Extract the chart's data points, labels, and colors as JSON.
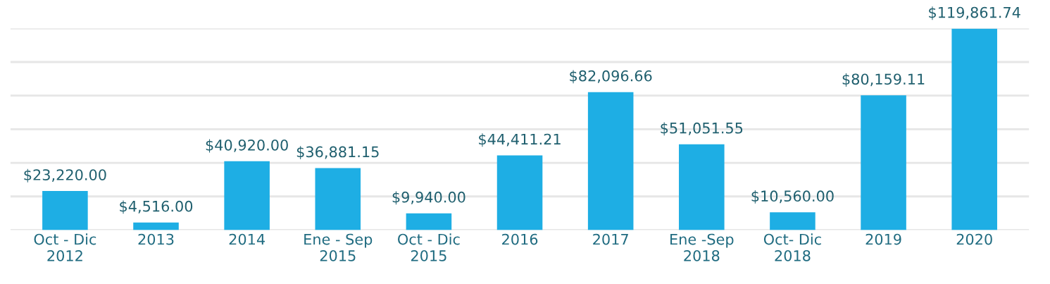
{
  "chart_data": {
    "type": "bar",
    "categories": [
      "Oct - Dic\n2012",
      "2013",
      "2014",
      "Ene - Sep\n2015",
      "Oct - Dic\n2015",
      "2016",
      "2017",
      "Ene -Sep\n2018",
      "Oct- Dic\n2018",
      "2019",
      "2020"
    ],
    "values": [
      23220.0,
      4516.0,
      40920.0,
      36881.15,
      9940.0,
      44411.21,
      82096.66,
      51051.55,
      10560.0,
      80159.11,
      119861.74
    ],
    "value_labels": [
      "$23,220.00",
      "$4,516.00",
      "$40,920.00",
      "$36,881.15",
      "$9,940.00",
      "$44,411.21",
      "$82,096.66",
      "$51,051.55",
      "$10,560.00",
      "$80,159.11",
      "$119,861.74"
    ],
    "color": "#1eaee4",
    "ylim": [
      0,
      120000
    ],
    "yticks": [
      {
        "value": 0,
        "label": null
      },
      {
        "value": 20000,
        "label": null
      },
      {
        "value": 40000,
        "label": null
      },
      {
        "value": 60000,
        "label": null
      },
      {
        "value": 80000,
        "label": null
      },
      {
        "value": 100000,
        "label": null
      },
      {
        "value": 120000,
        "label": null
      }
    ],
    "tick_labels": "x",
    "grid": "y"
  }
}
